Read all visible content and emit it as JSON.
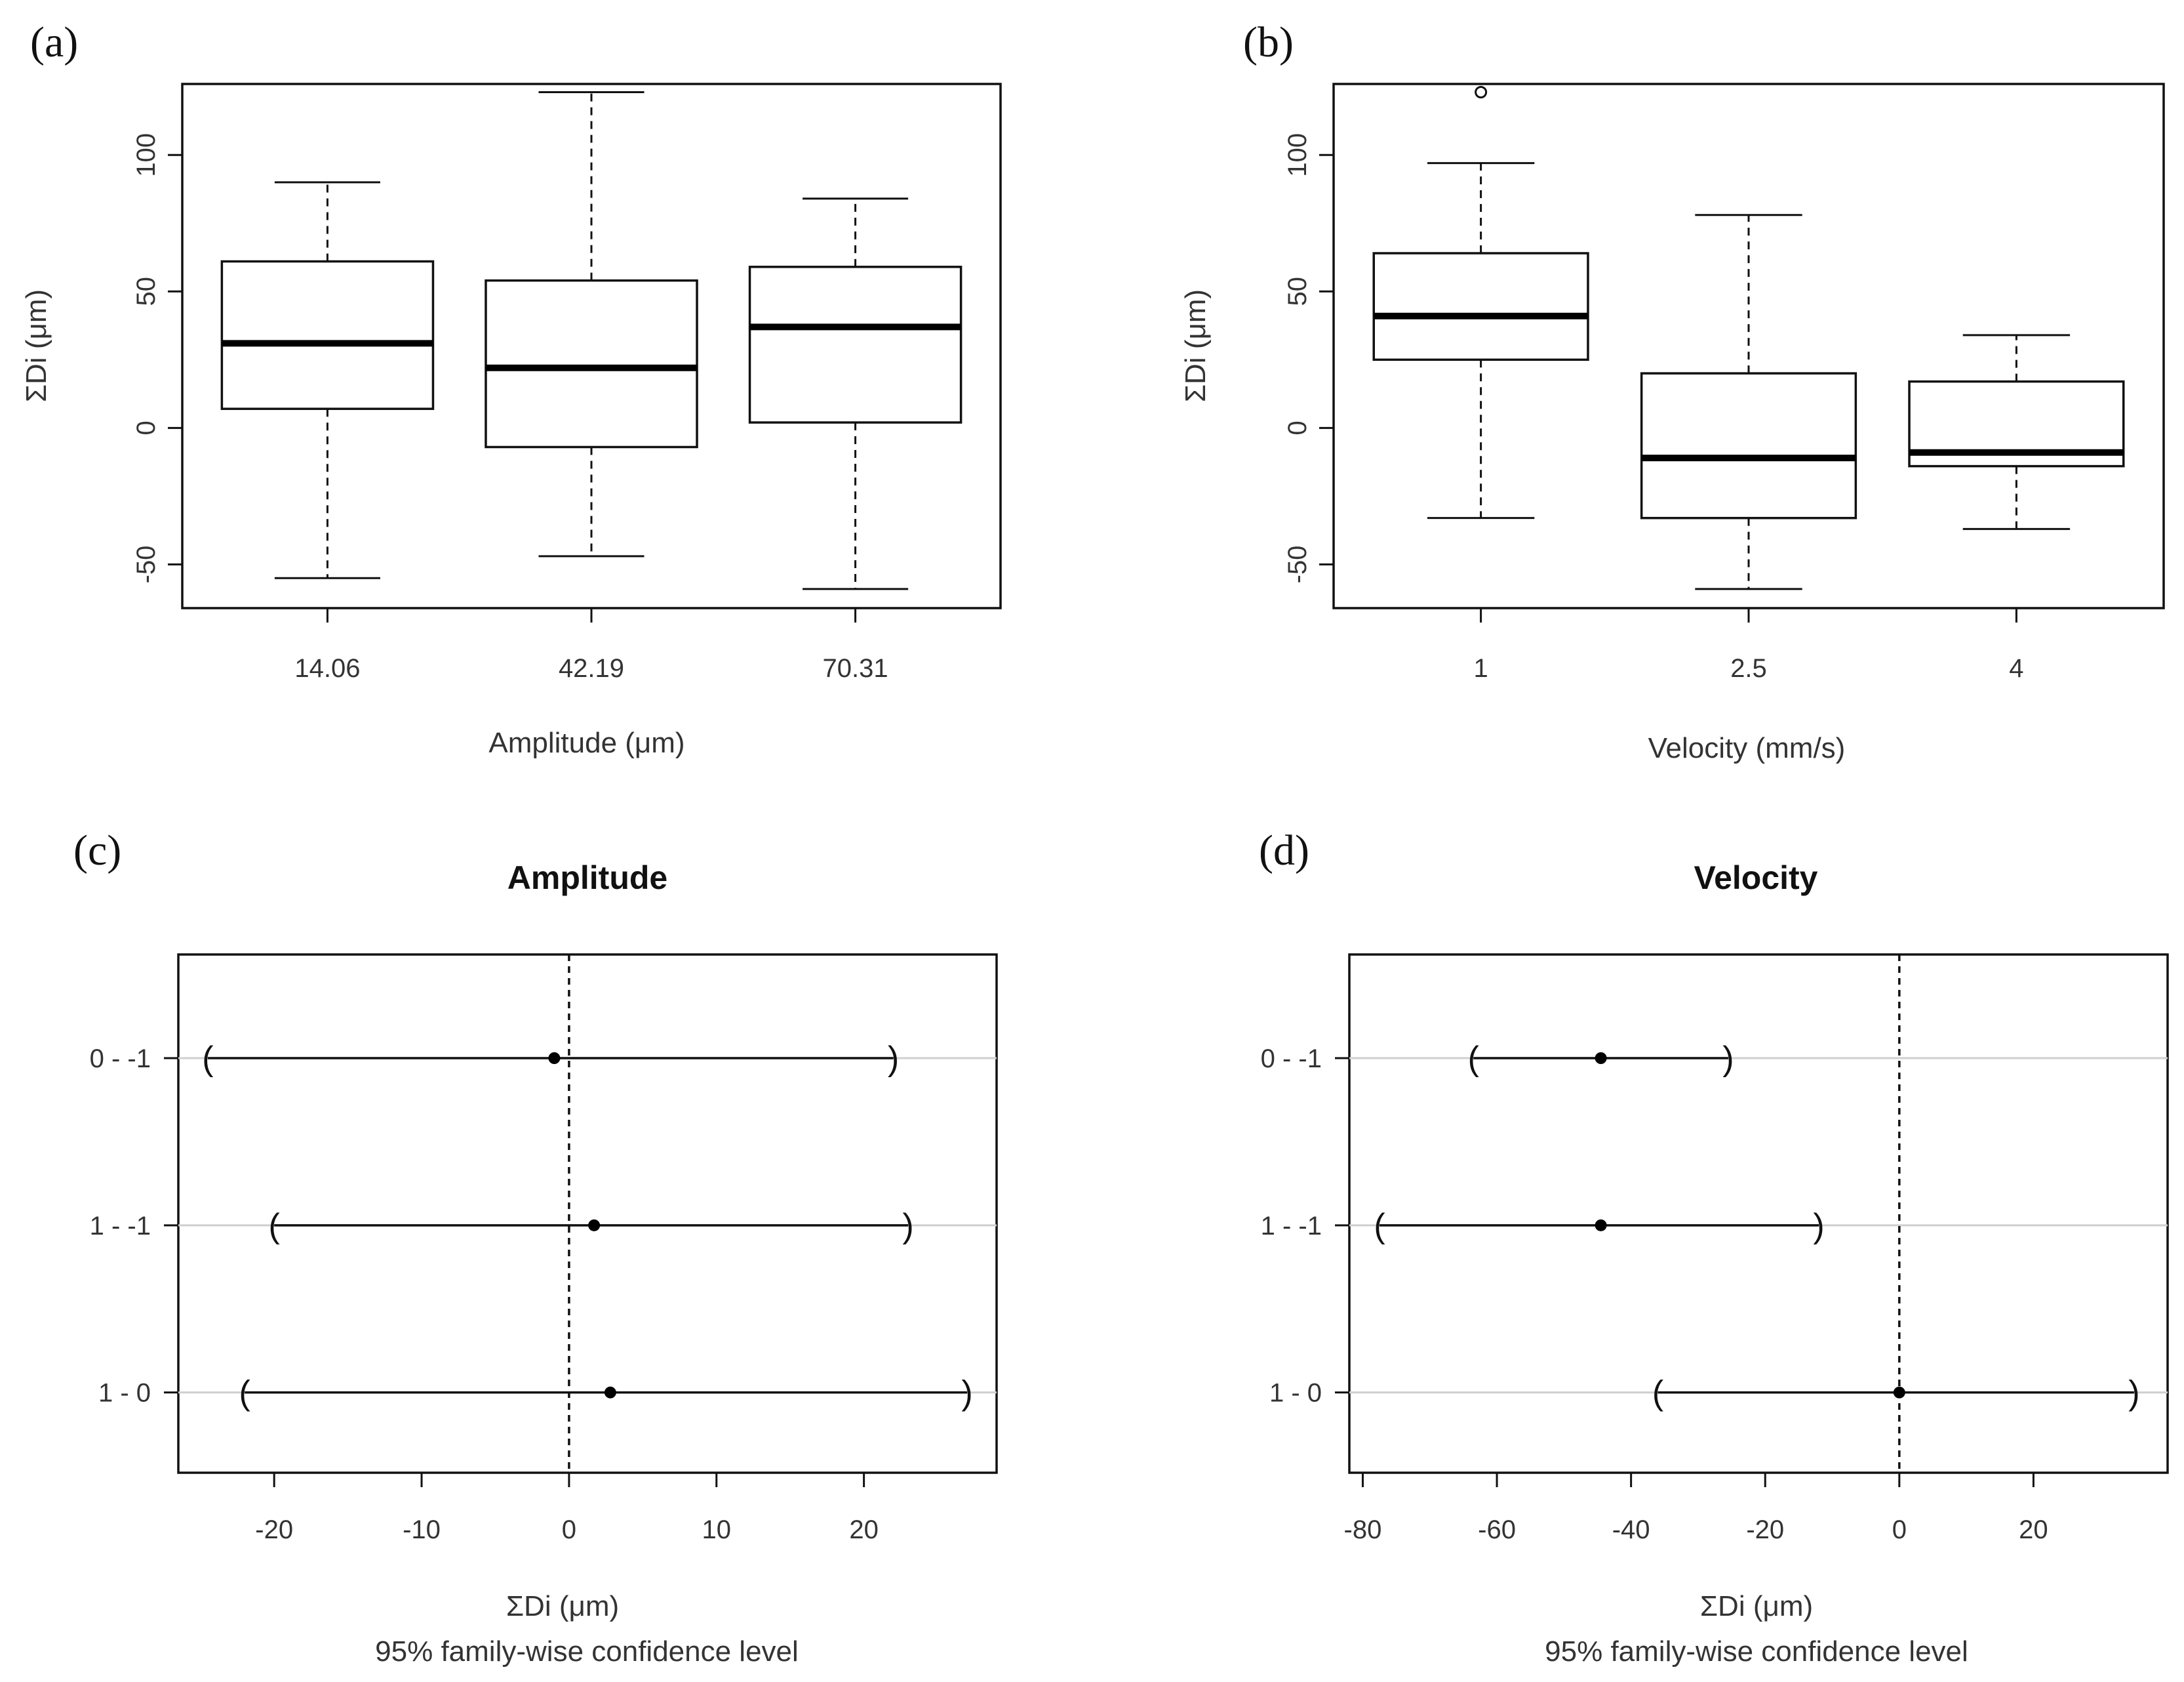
{
  "colors": {
    "ink": "#111111",
    "grid": "#cfcfcf",
    "background": "#ffffff"
  },
  "chart_data": [
    {
      "id": "a",
      "panel_label": "(a)",
      "type": "box",
      "title": "",
      "xlabel": "Amplitude (μm)",
      "ylabel": "ΣDi (μm)",
      "categories": [
        "14.06",
        "42.19",
        "70.31"
      ],
      "ylim": [
        -66,
        126
      ],
      "yticks": [
        -50,
        0,
        50,
        100
      ],
      "boxes": [
        {
          "category": "14.06",
          "min": -55,
          "q1": 7,
          "median": 31,
          "q3": 61,
          "max": 90,
          "outliers": []
        },
        {
          "category": "42.19",
          "min": -47,
          "q1": -7,
          "median": 22,
          "q3": 54,
          "max": 123,
          "outliers": []
        },
        {
          "category": "70.31",
          "min": -59,
          "q1": 2,
          "median": 37,
          "q3": 59,
          "max": 84,
          "outliers": []
        }
      ]
    },
    {
      "id": "b",
      "panel_label": "(b)",
      "type": "box",
      "title": "",
      "xlabel": "Velocity (mm/s)",
      "ylabel": "ΣDi (μm)",
      "categories": [
        "1",
        "2.5",
        "4"
      ],
      "ylim": [
        -66,
        126
      ],
      "yticks": [
        -50,
        0,
        50,
        100
      ],
      "boxes": [
        {
          "category": "1",
          "min": -33,
          "q1": 25,
          "median": 41,
          "q3": 64,
          "max": 97,
          "outliers": [
            123
          ]
        },
        {
          "category": "2.5",
          "min": -59,
          "q1": -33,
          "median": -11,
          "q3": 20,
          "max": 78,
          "outliers": []
        },
        {
          "category": "4",
          "min": -37,
          "q1": -14,
          "median": -9,
          "q3": 17,
          "max": 34,
          "outliers": []
        }
      ]
    },
    {
      "id": "c",
      "panel_label": "(c)",
      "type": "interval",
      "title": "Amplitude",
      "xlabel": "ΣDi (μm)",
      "xlabel2": "95% family-wise confidence level",
      "xlim": [
        -26.5,
        29
      ],
      "xticks": [
        -20,
        -10,
        0,
        10,
        20
      ],
      "rows": [
        {
          "label": "0 - -1",
          "lower": -24.5,
          "estimate": -1,
          "upper": 22
        },
        {
          "label": "1 - -1",
          "lower": -20,
          "estimate": 1.7,
          "upper": 23
        },
        {
          "label": "1 - 0",
          "lower": -22,
          "estimate": 2.8,
          "upper": 27
        }
      ]
    },
    {
      "id": "d",
      "panel_label": "(d)",
      "type": "interval",
      "title": "Velocity",
      "xlabel": "ΣDi (μm)",
      "xlabel2": "95% family-wise confidence level",
      "xlim": [
        -82,
        40
      ],
      "xticks": [
        -80,
        -60,
        -40,
        -20,
        0,
        20
      ],
      "rows": [
        {
          "label": "0 - -1",
          "lower": -63.5,
          "estimate": -44.5,
          "upper": -25.5
        },
        {
          "label": "1 - -1",
          "lower": -77.5,
          "estimate": -44.5,
          "upper": -12
        },
        {
          "label": "1 - 0",
          "lower": -36,
          "estimate": 0,
          "upper": 35
        }
      ]
    }
  ]
}
